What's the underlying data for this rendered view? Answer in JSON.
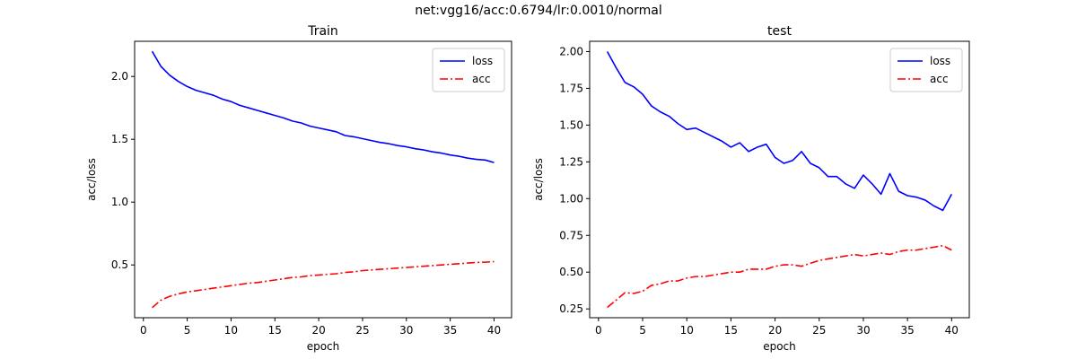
{
  "figure": {
    "suptitle": "net:vgg16/acc:0.6794/lr:0.0010/normal",
    "colors": {
      "loss": "#0000ff",
      "acc": "#ff0000"
    }
  },
  "chart_data": [
    {
      "type": "line",
      "title": "Train",
      "xlabel": "epoch",
      "ylabel": "acc/loss",
      "xlim": [
        -1,
        42
      ],
      "ylim": [
        0.08,
        2.28
      ],
      "xticks": [
        0,
        5,
        10,
        15,
        20,
        25,
        30,
        35,
        40
      ],
      "yticks": [
        0.5,
        1.0,
        1.5,
        2.0
      ],
      "ytick_labels": [
        "0.5",
        "1.0",
        "1.5",
        "2.0"
      ],
      "grid": false,
      "legend_position": "top-right",
      "x": [
        1,
        2,
        3,
        4,
        5,
        6,
        7,
        8,
        9,
        10,
        11,
        12,
        13,
        14,
        15,
        16,
        17,
        18,
        19,
        20,
        21,
        22,
        23,
        24,
        25,
        26,
        27,
        28,
        29,
        30,
        31,
        32,
        33,
        34,
        35,
        36,
        37,
        38,
        39,
        40
      ],
      "series": [
        {
          "name": "loss",
          "style": "solid",
          "values": [
            2.2,
            2.08,
            2.01,
            1.96,
            1.92,
            1.89,
            1.87,
            1.85,
            1.82,
            1.8,
            1.77,
            1.75,
            1.73,
            1.71,
            1.69,
            1.67,
            1.645,
            1.63,
            1.605,
            1.59,
            1.575,
            1.56,
            1.53,
            1.52,
            1.505,
            1.49,
            1.475,
            1.465,
            1.45,
            1.44,
            1.425,
            1.415,
            1.4,
            1.39,
            1.375,
            1.365,
            1.35,
            1.34,
            1.335,
            1.315
          ]
        },
        {
          "name": "acc",
          "style": "dashdot",
          "values": [
            0.16,
            0.22,
            0.25,
            0.27,
            0.285,
            0.295,
            0.305,
            0.315,
            0.325,
            0.335,
            0.345,
            0.355,
            0.36,
            0.37,
            0.38,
            0.39,
            0.4,
            0.405,
            0.415,
            0.42,
            0.425,
            0.43,
            0.44,
            0.445,
            0.455,
            0.46,
            0.465,
            0.47,
            0.475,
            0.48,
            0.485,
            0.49,
            0.495,
            0.5,
            0.505,
            0.51,
            0.515,
            0.52,
            0.522,
            0.527
          ]
        }
      ]
    },
    {
      "type": "line",
      "title": "test",
      "xlabel": "epoch",
      "ylabel": "acc/loss",
      "xlim": [
        -1,
        42
      ],
      "ylim": [
        0.19,
        2.07
      ],
      "xticks": [
        0,
        5,
        10,
        15,
        20,
        25,
        30,
        35,
        40
      ],
      "yticks": [
        0.25,
        0.5,
        0.75,
        1.0,
        1.25,
        1.5,
        1.75,
        2.0
      ],
      "ytick_labels": [
        "0.25",
        "0.50",
        "0.75",
        "1.00",
        "1.25",
        "1.50",
        "1.75",
        "2.00"
      ],
      "grid": false,
      "legend_position": "top-right",
      "x": [
        1,
        2,
        3,
        4,
        5,
        6,
        7,
        8,
        9,
        10,
        11,
        12,
        13,
        14,
        15,
        16,
        17,
        18,
        19,
        20,
        21,
        22,
        23,
        24,
        25,
        26,
        27,
        28,
        29,
        30,
        31,
        32,
        33,
        34,
        35,
        36,
        37,
        38,
        39,
        40
      ],
      "series": [
        {
          "name": "loss",
          "style": "solid",
          "values": [
            2.0,
            1.89,
            1.79,
            1.76,
            1.71,
            1.63,
            1.59,
            1.56,
            1.51,
            1.47,
            1.48,
            1.45,
            1.42,
            1.39,
            1.35,
            1.38,
            1.32,
            1.35,
            1.37,
            1.28,
            1.24,
            1.26,
            1.32,
            1.24,
            1.21,
            1.15,
            1.15,
            1.1,
            1.07,
            1.16,
            1.1,
            1.03,
            1.17,
            1.05,
            1.02,
            1.01,
            0.99,
            0.95,
            0.92,
            1.03
          ]
        },
        {
          "name": "acc",
          "style": "dashdot",
          "values": [
            0.26,
            0.31,
            0.36,
            0.355,
            0.37,
            0.41,
            0.42,
            0.44,
            0.44,
            0.46,
            0.47,
            0.47,
            0.48,
            0.49,
            0.5,
            0.5,
            0.52,
            0.52,
            0.52,
            0.54,
            0.55,
            0.55,
            0.54,
            0.56,
            0.58,
            0.59,
            0.6,
            0.61,
            0.62,
            0.61,
            0.62,
            0.63,
            0.62,
            0.64,
            0.65,
            0.65,
            0.66,
            0.67,
            0.68,
            0.65
          ]
        }
      ]
    }
  ]
}
